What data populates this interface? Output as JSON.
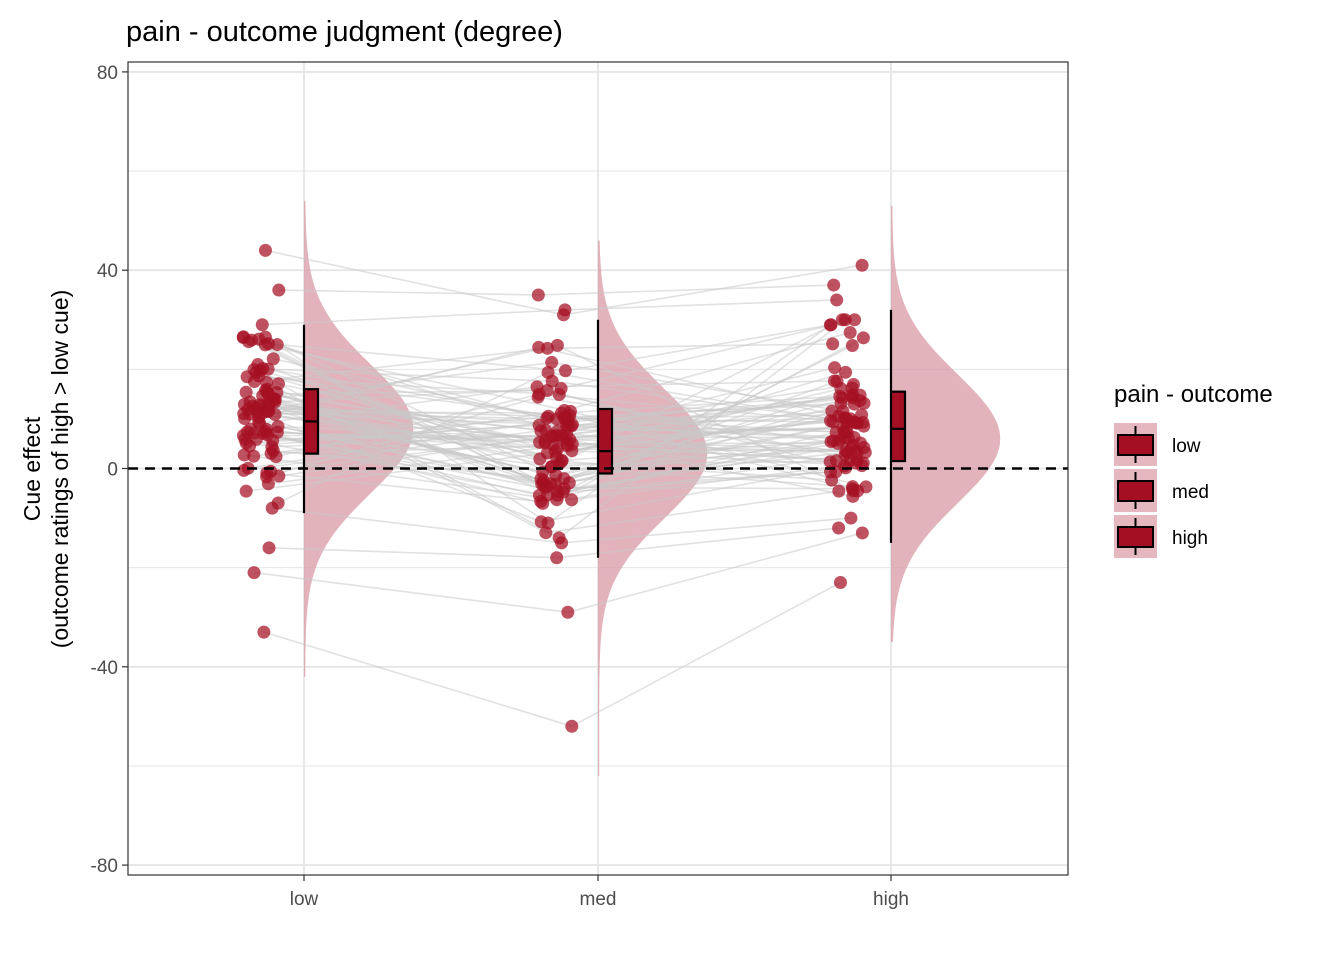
{
  "colors": {
    "point": "#A50F23",
    "violin": "#DA9AA5",
    "box_fill": "#A50F23",
    "line": "#C8C8C8",
    "grid": "#E6E6E6"
  },
  "chart_data": {
    "type": "raincloud",
    "title": "pain  - outcome judgment (degree)",
    "ylabel_line1": "Cue effect",
    "ylabel_line2": "(outcome ratings of high > low cue)",
    "xlabel": "",
    "categories": [
      "low",
      "med",
      "high"
    ],
    "ylim": [
      -82,
      82
    ],
    "yticks": [
      80,
      40,
      0,
      -40,
      -80
    ],
    "ytick_labels": [
      "80",
      "40",
      "0",
      "-40",
      "-80"
    ],
    "reference_line_y": 0,
    "grid": true,
    "legend": {
      "title": "pain  - outcome",
      "position": "right",
      "entries": [
        "low",
        "med",
        "high"
      ]
    },
    "box_stats": [
      {
        "category": "low",
        "q1": 3,
        "median": 9.5,
        "q3": 16,
        "whisker_low": -9,
        "whisker_high": 29
      },
      {
        "category": "med",
        "q1": -1,
        "median": 3.5,
        "q3": 12,
        "whisker_low": -18,
        "whisker_high": 30
      },
      {
        "category": "high",
        "q1": 1.5,
        "median": 8,
        "q3": 15.5,
        "whisker_low": -15,
        "whisker_high": 32
      }
    ],
    "density": [
      {
        "category": "low",
        "mode": 8,
        "y_min": -42,
        "y_max": 54
      },
      {
        "category": "med",
        "mode": 3,
        "y_min": -62,
        "y_max": 46
      },
      {
        "category": "high",
        "mode": 6,
        "y_min": -35,
        "y_max": 53
      }
    ],
    "notable_points": {
      "low": {
        "max": 44,
        "min": -33
      },
      "med": {
        "max": 35,
        "min": -52
      },
      "high": {
        "max": 41,
        "min": -23
      }
    }
  }
}
